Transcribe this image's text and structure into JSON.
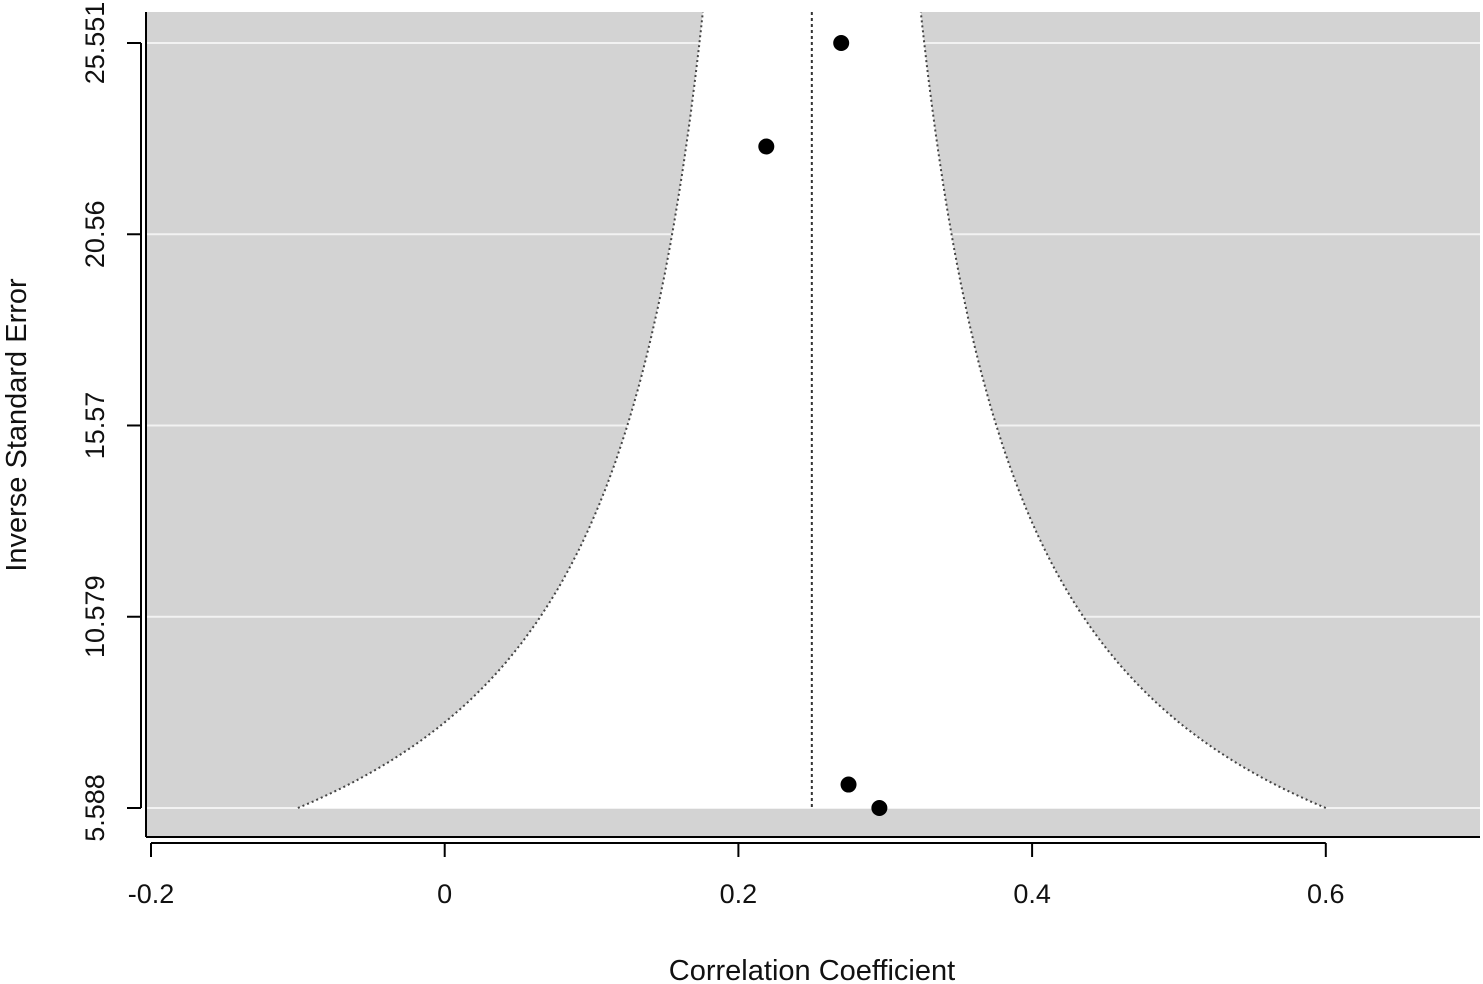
{
  "chart_data": {
    "type": "scatter",
    "title": "",
    "xlabel": "Correlation Coefficient",
    "ylabel": "Inverse Standard Error",
    "xlim": [
      -0.2,
      0.7
    ],
    "ylim": [
      5.588,
      25.551
    ],
    "x_ticks": [
      -0.2,
      0,
      0.2,
      0.4,
      0.6
    ],
    "x_tick_labels": [
      "-0.2",
      "0",
      "0.2",
      "0.4",
      "0.6"
    ],
    "y_ticks": [
      5.588,
      10.579,
      15.57,
      20.56,
      25.551
    ],
    "y_tick_labels": [
      "5.588",
      "10.579",
      "15.57",
      "20.56",
      "25.551"
    ],
    "reference_line_x": 0.25,
    "funnel_bottom_x": [
      -0.1,
      0.6
    ],
    "background_color": "#d3d3d3",
    "funnel_color": "#ffffff",
    "grid": "horizontal",
    "grid_color": "#f2f2f2",
    "point_color": "#000000",
    "points": [
      {
        "x": 0.27,
        "y": 25.551
      },
      {
        "x": 0.219,
        "y": 22.85
      },
      {
        "x": 0.275,
        "y": 6.2
      },
      {
        "x": 0.296,
        "y": 5.588
      }
    ]
  }
}
